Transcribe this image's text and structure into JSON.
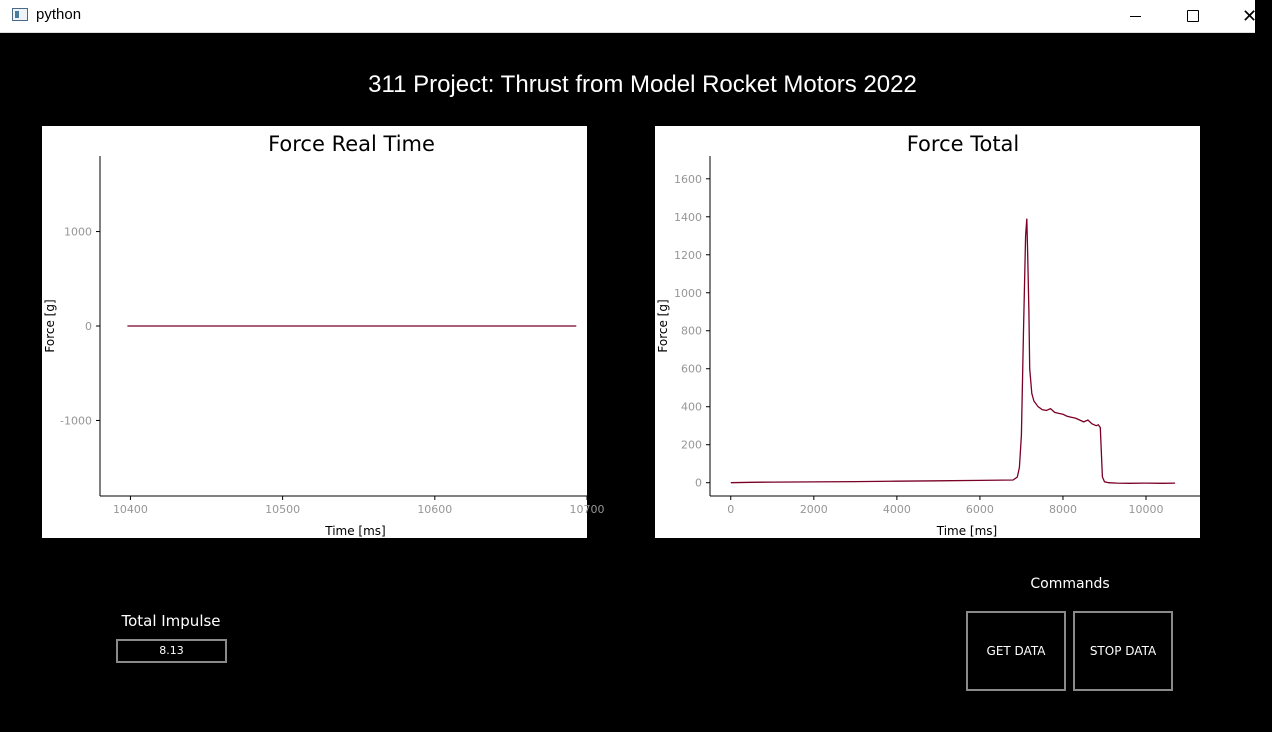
{
  "window": {
    "title": "python",
    "close_glyph": "✕"
  },
  "header": {
    "title": "311 Project: Thrust from Model Rocket Motors 2022"
  },
  "impulse": {
    "label": "Total Impulse",
    "value": "8.13"
  },
  "commands": {
    "label": "Commands",
    "get_label": "GET DATA",
    "stop_label": "STOP DATA"
  },
  "colors": {
    "line": "#7a0026",
    "axis": "#000000",
    "tick_label": "#969696"
  },
  "chart_data": [
    {
      "type": "line",
      "title": "Force Real Time",
      "xlabel": "Time [ms]",
      "ylabel": "Force [g]",
      "xlim": [
        10380,
        10700
      ],
      "ylim": [
        -1800,
        1800
      ],
      "xticks": [
        10400,
        10500,
        10600,
        10700
      ],
      "yticks": [
        -1000,
        0,
        1000
      ],
      "grid": false,
      "series": [
        {
          "x": [
            10398,
            10450,
            10500,
            10550,
            10600,
            10650,
            10693
          ],
          "y": [
            0,
            0,
            0,
            0,
            0,
            0,
            0
          ]
        }
      ]
    },
    {
      "type": "line",
      "title": "Force Total",
      "xlabel": "Time [ms]",
      "ylabel": "Force [g]",
      "xlim": [
        -500,
        11300
      ],
      "ylim": [
        -70,
        1720
      ],
      "xticks": [
        0,
        2000,
        4000,
        6000,
        8000,
        10000
      ],
      "yticks": [
        0,
        200,
        400,
        600,
        800,
        1000,
        1200,
        1400,
        1600
      ],
      "grid": false,
      "series": [
        {
          "x": [
            0,
            500,
            1000,
            2000,
            3000,
            4000,
            5000,
            6000,
            6800,
            6900,
            6950,
            7000,
            7050,
            7100,
            7130,
            7150,
            7180,
            7200,
            7250,
            7300,
            7400,
            7500,
            7600,
            7700,
            7800,
            7900,
            8000,
            8100,
            8200,
            8300,
            8400,
            8500,
            8600,
            8700,
            8800,
            8850,
            8900,
            8950,
            9000,
            9100,
            9300,
            9600,
            10000,
            10400,
            10700
          ],
          "y": [
            0,
            2,
            3,
            4,
            6,
            8,
            10,
            12,
            14,
            30,
            80,
            250,
            800,
            1300,
            1390,
            1200,
            900,
            600,
            470,
            430,
            400,
            385,
            380,
            390,
            370,
            365,
            360,
            350,
            345,
            340,
            330,
            320,
            330,
            310,
            300,
            305,
            290,
            30,
            5,
            0,
            -2,
            -3,
            -2,
            -3,
            -2
          ]
        }
      ]
    }
  ]
}
